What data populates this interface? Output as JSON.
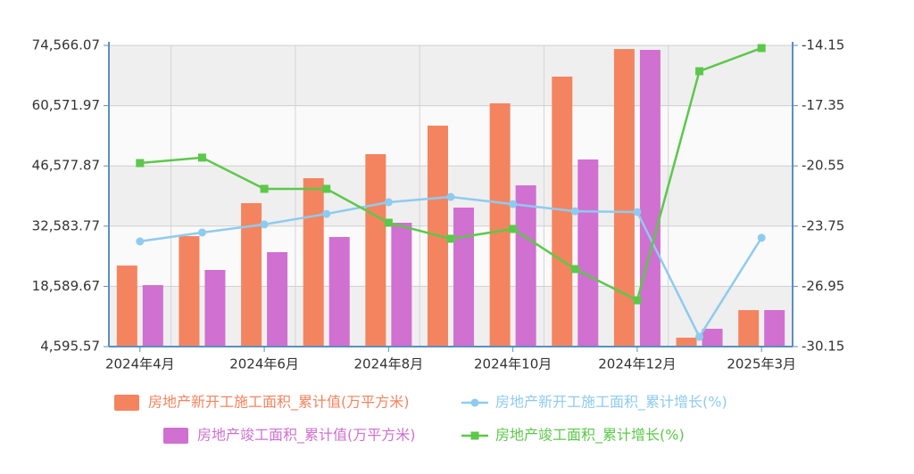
{
  "chart_data": {
    "type": "bar-line",
    "categories": [
      "2024年4月",
      null,
      "2024年6月",
      null,
      "2024年8月",
      null,
      "2024年10月",
      null,
      "2024年12月",
      null,
      "2025年3月"
    ],
    "series": [
      {
        "name": "房地产新开工施工面积_累计值(万平方米)",
        "type": "bar",
        "color": "#f4845f",
        "values": [
          23430,
          30260,
          37920,
          43720,
          49310,
          55930,
          61110,
          67320,
          73730,
          6670,
          13080
        ]
      },
      {
        "name": "房地产新开工施工面积_累计增长(%)",
        "type": "line",
        "axis": "y2",
        "color": "#8ecbef",
        "values": [
          -24.56,
          -24.09,
          -23.66,
          -23.1,
          -22.48,
          -22.2,
          -22.58,
          -22.96,
          -23.0,
          -29.63,
          -24.37
        ]
      },
      {
        "name": "房地产竣工面积_累计值(万平方米)",
        "type": "bar",
        "color": "#d070d0",
        "values": [
          18880,
          22400,
          26540,
          30060,
          33370,
          36890,
          42060,
          48070,
          73530,
          8740,
          13080
        ]
      },
      {
        "name": "房地产竣工面积_累计增长(%)",
        "type": "line",
        "axis": "y2",
        "color": "#5cc84a",
        "values": [
          -20.4,
          -20.11,
          -21.77,
          -21.77,
          -23.57,
          -24.42,
          -23.9,
          -26.03,
          -27.69,
          -15.52,
          -14.29
        ]
      }
    ],
    "ylim": [
      4595.57,
      74566.07
    ],
    "yticks": [
      {
        "value": 4595.57,
        "label": "4,595.57"
      },
      {
        "value": 18589.67,
        "label": "18,589.67"
      },
      {
        "value": 32583.77,
        "label": "32,583.77"
      },
      {
        "value": 46577.87,
        "label": "46,577.87"
      },
      {
        "value": 60571.97,
        "label": "60,571.97"
      },
      {
        "value": 74566.07,
        "label": "74,566.07"
      }
    ],
    "y2lim": [
      -30.15,
      -14.15
    ],
    "y2ticks": [
      -30.15,
      -26.95,
      -23.75,
      -20.55,
      -17.35,
      -14.15
    ],
    "grid": true
  }
}
